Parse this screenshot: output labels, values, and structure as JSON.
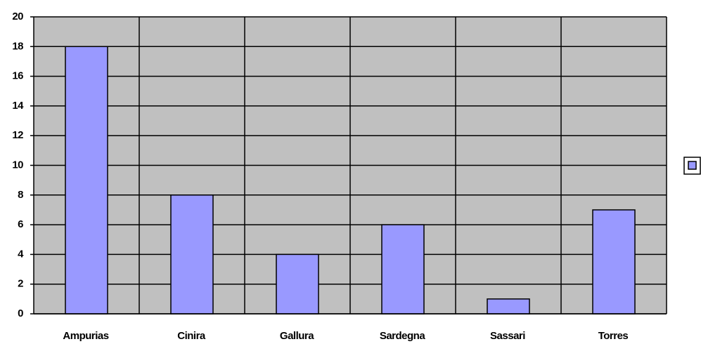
{
  "chart_data": {
    "type": "bar",
    "categories": [
      "Ampurias",
      "Cinira",
      "Gallura",
      "Sardegna",
      "Sassari",
      "Torres"
    ],
    "values": [
      18,
      8,
      4,
      6,
      1,
      7
    ],
    "color": "#9999ff",
    "ylim": [
      0,
      20
    ],
    "yticks": [
      0,
      2,
      4,
      6,
      8,
      10,
      12,
      14,
      16,
      18,
      20
    ],
    "grid": true,
    "legend": "right"
  }
}
